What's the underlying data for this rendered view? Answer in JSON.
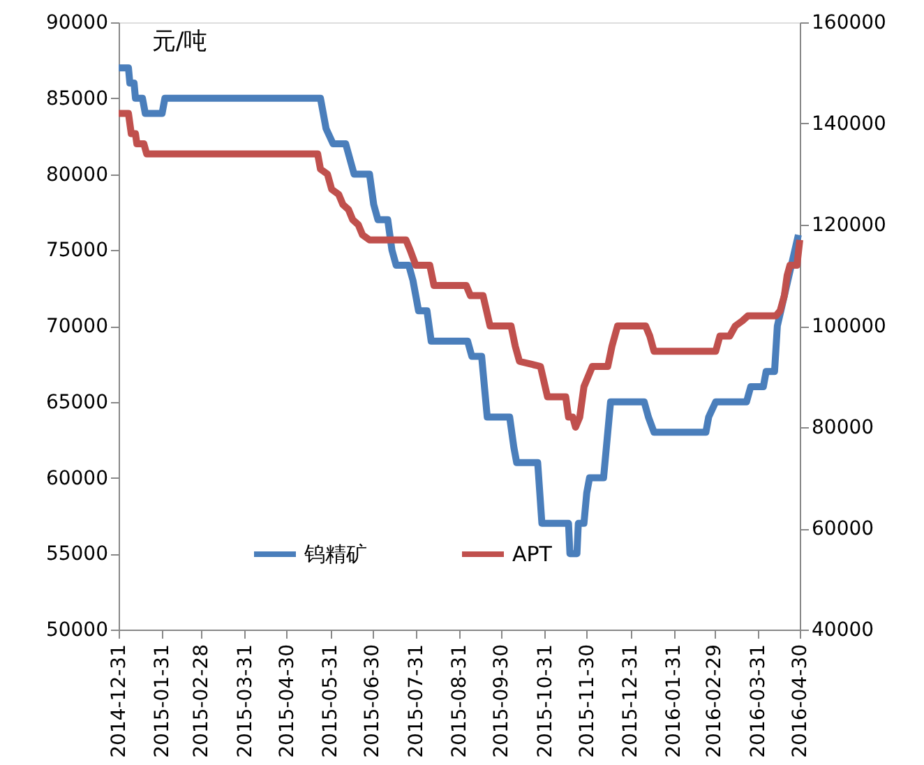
{
  "chart_data": {
    "type": "line",
    "ylabel": "元/吨",
    "legend": "bottom",
    "grid": false,
    "marker": "none",
    "line_style": "solid",
    "xlim": [
      "2014-12-31",
      "2016-04-30"
    ],
    "xticks": [
      "2014-12-31",
      "2015-01-31",
      "2015-02-28",
      "2015-03-31",
      "2015-04-30",
      "2015-05-31",
      "2015-06-30",
      "2015-07-31",
      "2015-08-31",
      "2015-09-30",
      "2015-10-31",
      "2015-11-30",
      "2015-12-31",
      "2016-01-31",
      "2016-02-29",
      "2016-03-31",
      "2016-04-30"
    ],
    "ylim": [
      50000,
      90000
    ],
    "yticks": [
      50000,
      55000,
      60000,
      65000,
      70000,
      75000,
      80000,
      85000,
      90000
    ],
    "y2lim": [
      40000,
      160000
    ],
    "y2ticks": [
      40000,
      60000,
      80000,
      100000,
      120000,
      140000,
      160000
    ],
    "series": [
      {
        "name": "钨精矿",
        "color": "#4a7ebb",
        "axis": "y",
        "x": [
          "2014-12-31",
          "2015-01-07",
          "2015-01-08",
          "2015-01-11",
          "2015-01-12",
          "2015-01-17",
          "2015-01-19",
          "2015-01-31",
          "2015-02-02",
          "2015-05-24",
          "2015-05-26",
          "2015-05-28",
          "2015-06-02",
          "2015-06-11",
          "2015-06-14",
          "2015-06-17",
          "2015-06-28",
          "2015-07-01",
          "2015-07-04",
          "2015-07-11",
          "2015-07-14",
          "2015-07-17",
          "2015-07-26",
          "2015-07-29",
          "2015-07-31",
          "2015-08-02",
          "2015-08-08",
          "2015-08-11",
          "2015-09-06",
          "2015-09-09",
          "2015-09-16",
          "2015-09-18",
          "2015-09-20",
          "2015-10-06",
          "2015-10-09",
          "2015-10-11",
          "2015-10-26",
          "2015-10-29",
          "2015-11-17",
          "2015-11-18",
          "2015-11-23",
          "2015-11-24",
          "2015-11-28",
          "2015-11-30",
          "2015-12-02",
          "2015-12-12",
          "2015-12-14",
          "2015-12-17",
          "2016-01-10",
          "2016-01-13",
          "2016-01-17",
          "2016-02-23",
          "2016-02-25",
          "2016-03-01",
          "2016-03-23",
          "2016-03-26",
          "2016-04-04",
          "2016-04-06",
          "2016-04-12",
          "2016-04-14",
          "2016-04-19",
          "2016-04-24",
          "2016-04-29"
        ],
        "values": [
          87000,
          87000,
          86000,
          86000,
          85000,
          85000,
          84000,
          84000,
          85000,
          85000,
          84000,
          83000,
          82000,
          82000,
          81000,
          80000,
          80000,
          78000,
          77000,
          77000,
          75000,
          74000,
          74000,
          73000,
          72000,
          71000,
          71000,
          69000,
          69000,
          68000,
          68000,
          66000,
          64000,
          64000,
          62000,
          61000,
          61000,
          57000,
          57000,
          55000,
          55000,
          57000,
          57000,
          59000,
          60000,
          60000,
          62000,
          65000,
          65000,
          64000,
          63000,
          63000,
          64000,
          65000,
          65000,
          66000,
          66000,
          67000,
          67000,
          70000,
          72000,
          74000,
          76000
        ]
      },
      {
        "name": "APT",
        "color": "#c0504d",
        "axis": "y2",
        "x": [
          "2014-12-31",
          "2015-01-07",
          "2015-01-09",
          "2015-01-12",
          "2015-01-13",
          "2015-01-18",
          "2015-01-20",
          "2015-05-22",
          "2015-05-24",
          "2015-05-29",
          "2015-06-01",
          "2015-06-06",
          "2015-06-09",
          "2015-06-13",
          "2015-06-16",
          "2015-06-20",
          "2015-06-23",
          "2015-06-28",
          "2015-07-24",
          "2015-07-27",
          "2015-07-31",
          "2015-08-10",
          "2015-08-13",
          "2015-09-05",
          "2015-09-08",
          "2015-09-17",
          "2015-09-22",
          "2015-10-07",
          "2015-10-10",
          "2015-10-13",
          "2015-10-28",
          "2015-11-02",
          "2015-11-15",
          "2015-11-17",
          "2015-11-20",
          "2015-11-22",
          "2015-11-25",
          "2015-11-28",
          "2015-12-01",
          "2015-12-04",
          "2015-12-15",
          "2015-12-18",
          "2015-12-22",
          "2016-01-11",
          "2016-01-14",
          "2016-01-17",
          "2016-03-01",
          "2016-03-04",
          "2016-03-11",
          "2016-03-15",
          "2016-03-20",
          "2016-03-24",
          "2016-04-13",
          "2016-04-16",
          "2016-04-19",
          "2016-04-21",
          "2016-04-23",
          "2016-04-28",
          "2016-04-30"
        ],
        "values": [
          142000,
          142000,
          138000,
          138000,
          136000,
          136000,
          134000,
          134000,
          131000,
          130000,
          127000,
          126000,
          124000,
          123000,
          121000,
          120000,
          118000,
          117000,
          117000,
          115000,
          112000,
          112000,
          108000,
          108000,
          106000,
          106000,
          100000,
          100000,
          96000,
          93000,
          92000,
          86000,
          86000,
          82000,
          82000,
          80000,
          82000,
          88000,
          90000,
          92000,
          92000,
          96000,
          100000,
          100000,
          98000,
          95000,
          95000,
          98000,
          98000,
          100000,
          101000,
          102000,
          102000,
          103000,
          106000,
          110000,
          112000,
          112000,
          117000
        ]
      }
    ]
  }
}
